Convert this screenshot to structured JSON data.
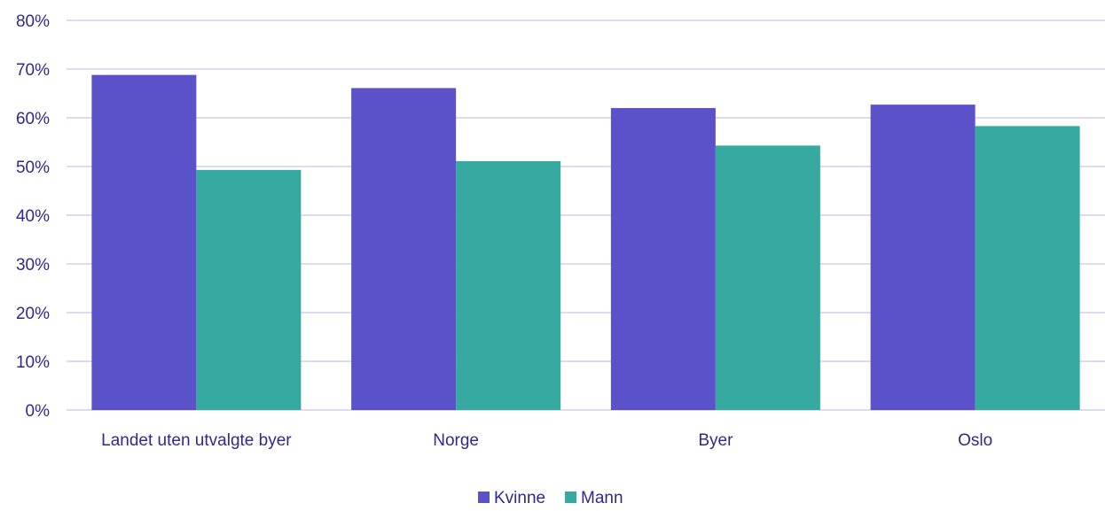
{
  "colors": {
    "text": "#2e2a8c",
    "grid": "#c9c5e8",
    "kvinne": "#5b51c8",
    "mann": "#36aaa0"
  },
  "chart_data": {
    "type": "bar",
    "categories": [
      "Landet uten utvalgte byer",
      "Norge",
      "Byer",
      "Oslo"
    ],
    "series": [
      {
        "name": "Kvinne",
        "values": [
          68.8,
          66.1,
          62.0,
          62.7
        ]
      },
      {
        "name": "Mann",
        "values": [
          49.3,
          51.1,
          54.3,
          58.3
        ]
      }
    ],
    "yaxis": {
      "min": 0,
      "max": 80,
      "step": 10,
      "tick_labels": [
        "0%",
        "10%",
        "20%",
        "30%",
        "40%",
        "50%",
        "60%",
        "70%",
        "80%"
      ]
    },
    "grid": true,
    "legend": "bottom-center",
    "title": "",
    "xlabel": "",
    "ylabel": ""
  }
}
